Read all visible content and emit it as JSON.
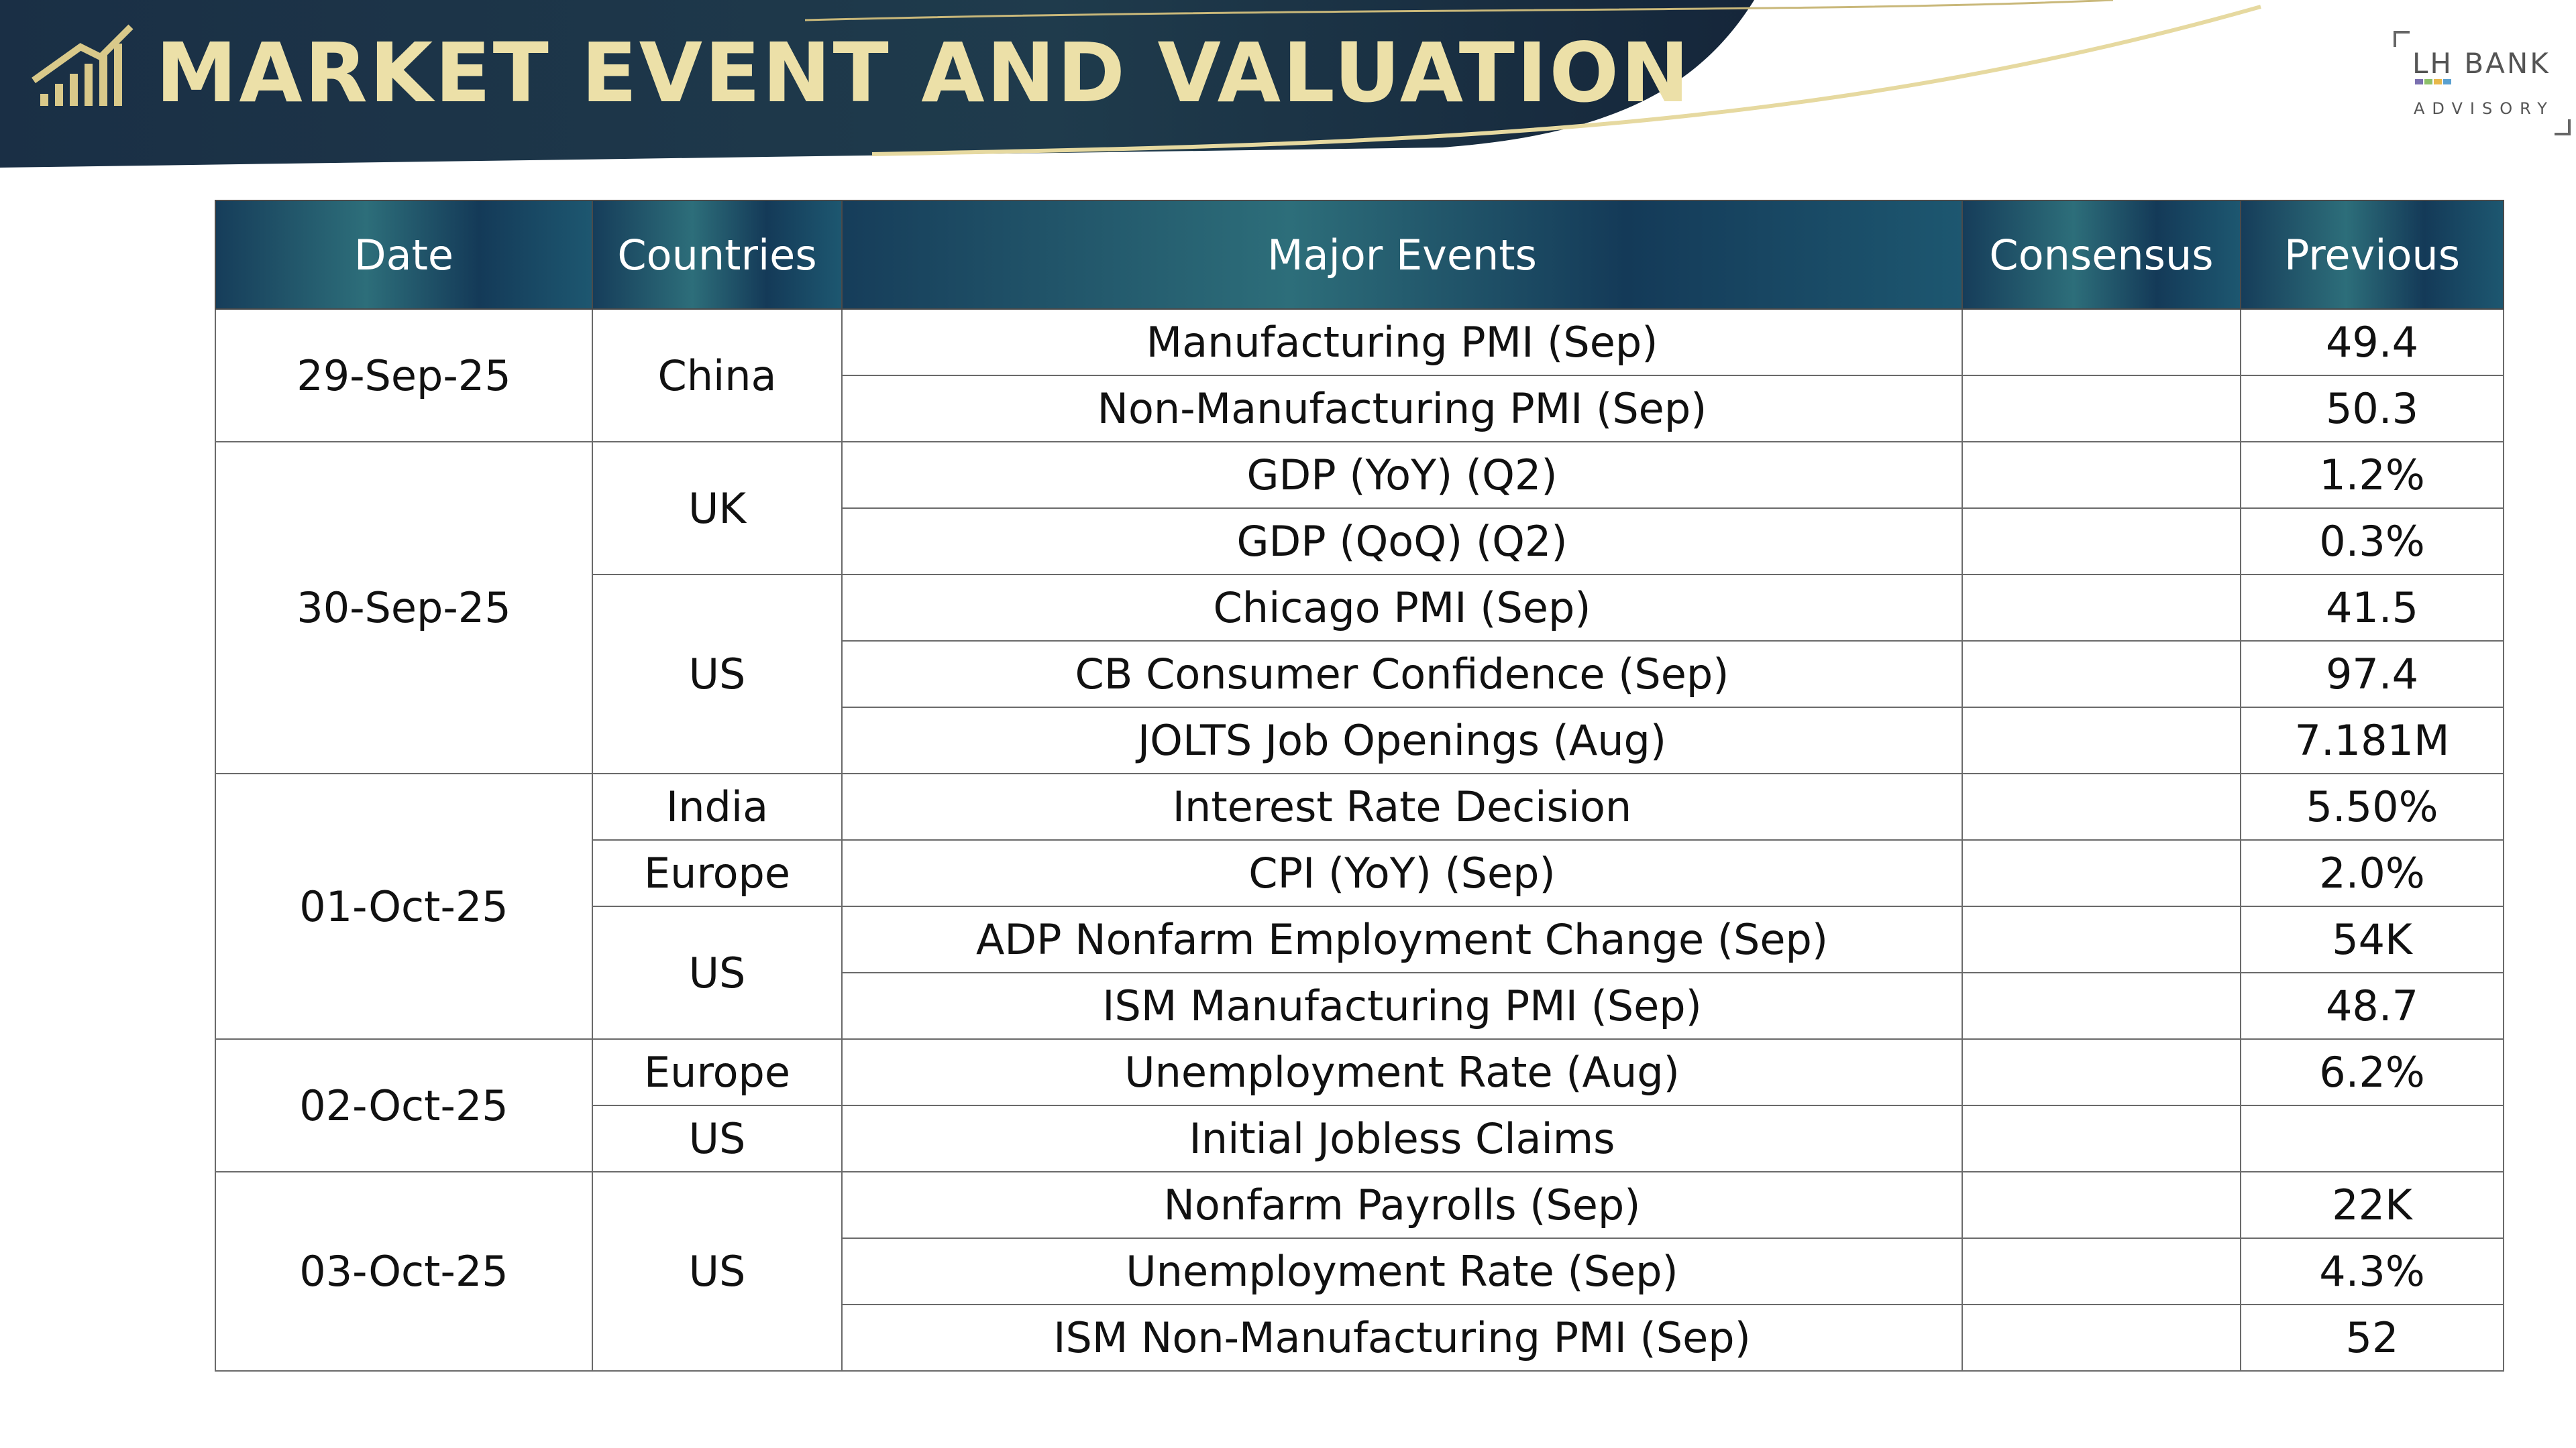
{
  "header": {
    "title": "MARKET EVENT AND VALUATION"
  },
  "logo": {
    "name": "LH BANK",
    "tagline": "ADVISORY"
  },
  "table": {
    "columns": [
      "Date",
      "Countries",
      "Major Events",
      "Consensus",
      "Previous"
    ],
    "groups": [
      {
        "date": "29-Sep-25",
        "countries": [
          {
            "country": "China",
            "events": [
              {
                "event": "Manufacturing PMI (Sep)",
                "previous": "49.4"
              },
              {
                "event": "Non-Manufacturing PMI (Sep)",
                "previous": "50.3"
              }
            ]
          }
        ]
      },
      {
        "date": "30-Sep-25",
        "countries": [
          {
            "country": "UK",
            "events": [
              {
                "event": "GDP (YoY) (Q2)",
                "previous": "1.2%"
              },
              {
                "event": "GDP (QoQ) (Q2)",
                "previous": "0.3%"
              }
            ]
          },
          {
            "country": "US",
            "events": [
              {
                "event": "Chicago PMI (Sep)",
                "previous": "41.5"
              },
              {
                "event": "CB Consumer Confidence (Sep)",
                "previous": "97.4"
              },
              {
                "event": "JOLTS Job Openings (Aug)",
                "previous": "7.181M"
              }
            ]
          }
        ]
      },
      {
        "date": "01-Oct-25",
        "countries": [
          {
            "country": "India",
            "events": [
              {
                "event": "Interest Rate Decision",
                "previous": "5.50%"
              }
            ]
          },
          {
            "country": "Europe",
            "events": [
              {
                "event": "CPI (YoY) (Sep)",
                "previous": "2.0%"
              }
            ]
          },
          {
            "country": "US",
            "events": [
              {
                "event": "ADP Nonfarm Employment Change (Sep)",
                "previous": "54K"
              },
              {
                "event": "ISM Manufacturing PMI (Sep)",
                "previous": "48.7"
              }
            ]
          }
        ]
      },
      {
        "date": "02-Oct-25",
        "countries": [
          {
            "country": "Europe",
            "events": [
              {
                "event": "Unemployment Rate (Aug)",
                "previous": "6.2%"
              }
            ]
          },
          {
            "country": "US",
            "events": [
              {
                "event": "Initial Jobless Claims"
              }
            ]
          }
        ]
      },
      {
        "date": "03-Oct-25",
        "countries": [
          {
            "country": "US",
            "events": [
              {
                "event": "Nonfarm Payrolls (Sep)",
                "previous": "22K"
              },
              {
                "event": "Unemployment Rate (Sep)",
                "previous": "4.3%"
              },
              {
                "event": "ISM Non-Manufacturing PMI (Sep)",
                "previous": "52"
              }
            ]
          }
        ]
      }
    ]
  }
}
